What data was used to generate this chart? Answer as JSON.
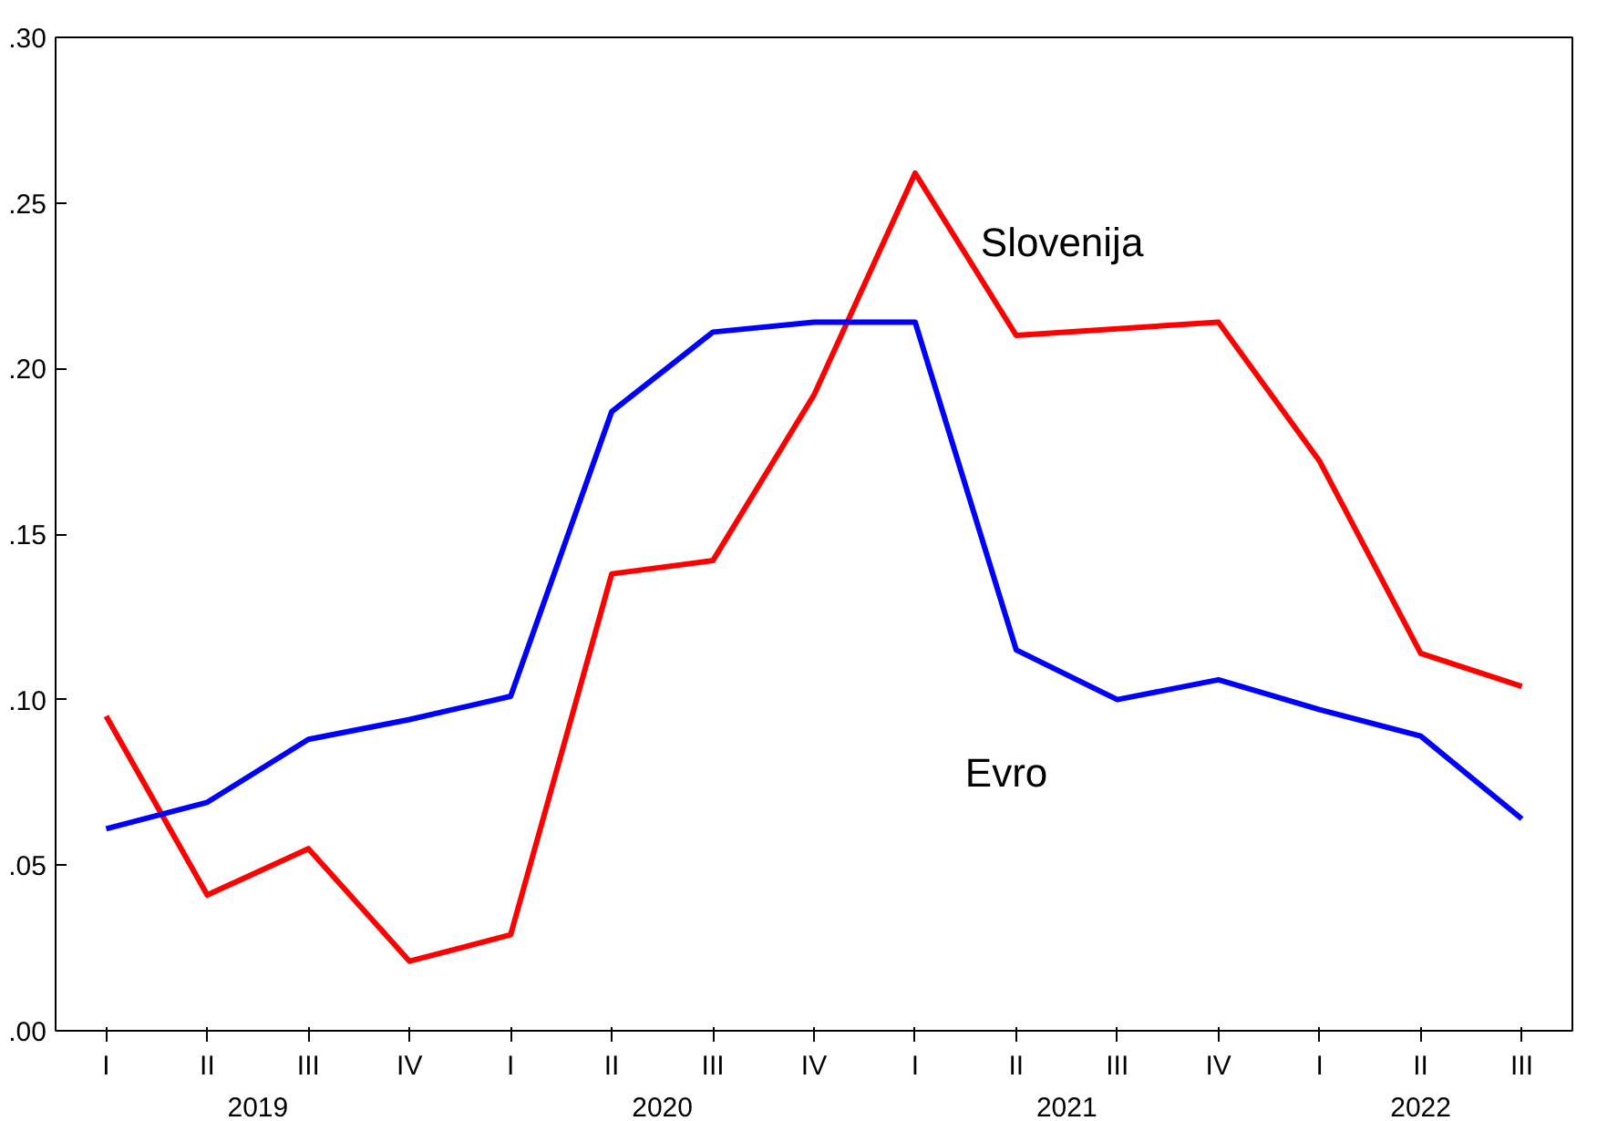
{
  "chart_data": {
    "type": "line",
    "categories": [
      "I",
      "II",
      "III",
      "IV",
      "I",
      "II",
      "III",
      "IV",
      "I",
      "II",
      "III",
      "IV",
      "I",
      "II",
      "III"
    ],
    "annotations": [
      "2019",
      "2020",
      "2021",
      "2022"
    ],
    "series": [
      {
        "name": "Slovenija",
        "color": "#ff0000",
        "values": [
          0.095,
          0.041,
          0.055,
          0.021,
          0.029,
          0.138,
          0.142,
          0.192,
          0.259,
          0.21,
          0.212,
          0.214,
          0.172,
          0.114,
          0.104
        ]
      },
      {
        "name": "Evro",
        "color": "#0000ff",
        "values": [
          0.061,
          0.069,
          0.088,
          0.094,
          0.101,
          0.187,
          0.211,
          0.214,
          0.214,
          0.115,
          0.1,
          0.106,
          0.097,
          0.089,
          0.064
        ]
      }
    ],
    "ylim": [
      0,
      0.3
    ],
    "yticks": [
      {
        "value": 0,
        "label": ".00"
      },
      {
        "value": 0.05,
        "label": ".05"
      },
      {
        "value": 0.1,
        "label": ".10"
      },
      {
        "value": 0.15,
        "label": ".15"
      },
      {
        "value": 0.2,
        "label": ".20"
      },
      {
        "value": 0.25,
        "label": ".25"
      },
      {
        "value": 0.3,
        "label": ".30"
      }
    ],
    "grid": false,
    "marker": "none",
    "line_style": "solid"
  }
}
